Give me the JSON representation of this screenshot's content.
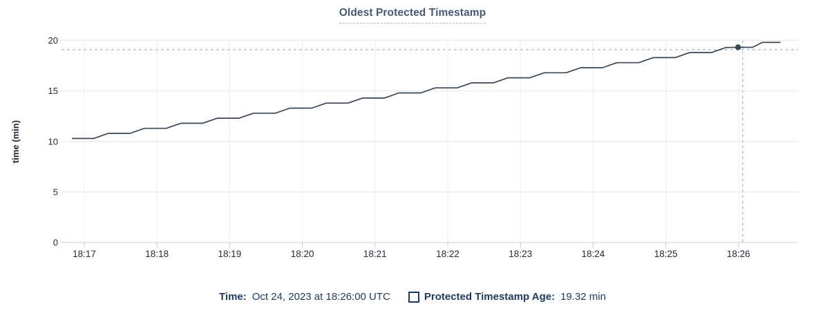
{
  "title": "Oldest Protected Timestamp",
  "legend": {
    "time_label": "Time:",
    "time_value": "Oct 24, 2023 at 18:26:00 UTC",
    "series_label": "Protected Timestamp Age:",
    "series_value": "19.32 min"
  },
  "colors": {
    "title": "#475872",
    "title_underline": "#a9b6c6",
    "legend_text": "#1e3a5e",
    "line": "#394455",
    "grid_horizontal": "#e9e9e9",
    "grid_vertical": "#efefef",
    "axis": "#d4d4d4",
    "axis_text": "#242a35",
    "crosshair": "#a6bacb",
    "background": "#ffffff"
  },
  "chart_data": {
    "type": "line",
    "title": "Oldest Protected Timestamp",
    "xlabel": "",
    "ylabel": "time (min)",
    "ylim": [
      0,
      20
    ],
    "y_ticks": [
      0,
      5,
      10,
      15,
      20
    ],
    "x_ticks": [
      "18:17",
      "18:18",
      "18:19",
      "18:20",
      "18:21",
      "18:22",
      "18:23",
      "18:24",
      "18:25",
      "18:26"
    ],
    "x_start_time": "18:16:50",
    "x_end_time": "18:26:35",
    "grid": "on",
    "legend_position": "bottom",
    "hover_point": {
      "time": "18:26:00",
      "t_offset_sec": 550,
      "value_min": 19.32
    },
    "series": [
      {
        "name": "Protected Timestamp Age",
        "unit": "min",
        "color": "#394455",
        "points_t_sec_value_min": [
          [
            0,
            10.3
          ],
          [
            18,
            10.3
          ],
          [
            30,
            10.8
          ],
          [
            48,
            10.8
          ],
          [
            60,
            11.3
          ],
          [
            78,
            11.3
          ],
          [
            90,
            11.8
          ],
          [
            108,
            11.8
          ],
          [
            120,
            12.3
          ],
          [
            138,
            12.3
          ],
          [
            150,
            12.8
          ],
          [
            168,
            12.8
          ],
          [
            180,
            13.3
          ],
          [
            198,
            13.3
          ],
          [
            210,
            13.8
          ],
          [
            228,
            13.8
          ],
          [
            240,
            14.3
          ],
          [
            258,
            14.3
          ],
          [
            270,
            14.8
          ],
          [
            288,
            14.8
          ],
          [
            300,
            15.3
          ],
          [
            318,
            15.3
          ],
          [
            330,
            15.8
          ],
          [
            348,
            15.8
          ],
          [
            360,
            16.3
          ],
          [
            378,
            16.3
          ],
          [
            390,
            16.8
          ],
          [
            408,
            16.8
          ],
          [
            420,
            17.3
          ],
          [
            438,
            17.3
          ],
          [
            450,
            17.8
          ],
          [
            468,
            17.8
          ],
          [
            480,
            18.3
          ],
          [
            498,
            18.3
          ],
          [
            510,
            18.8
          ],
          [
            528,
            18.8
          ],
          [
            540,
            19.3
          ],
          [
            562,
            19.32
          ],
          [
            570,
            19.8
          ],
          [
            585,
            19.8
          ]
        ]
      }
    ]
  }
}
